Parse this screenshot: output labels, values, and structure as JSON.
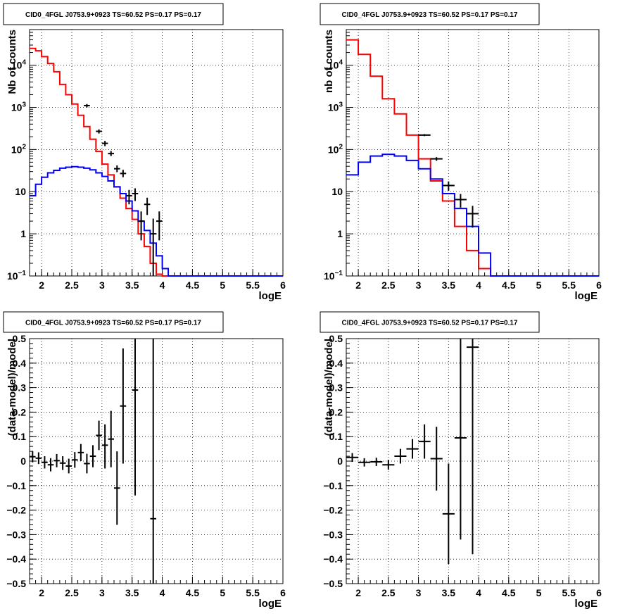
{
  "chart_data": [
    {
      "type": "histogram",
      "id": "top-left",
      "title": "CID0_4FGL J0753.9+0923 TS=60.52 PS=0.17 PS=0.17",
      "xlabel": "logE",
      "ylabel": "Nb of counts",
      "xlim": [
        1.8,
        6.0
      ],
      "ylim": [
        0.1,
        70000
      ],
      "yscale": "log",
      "grid": true,
      "bin_width": 0.1,
      "xticks": [
        "2",
        "2.5",
        "3",
        "3.5",
        "4",
        "4.5",
        "5",
        "5.5",
        "6"
      ],
      "yticks": [
        "10^-1",
        "1",
        "10",
        "10^2",
        "10^3",
        "10^4"
      ],
      "series": [
        {
          "color": "#ff0000",
          "style": "step",
          "bin_edges_start": 1.8,
          "values": [
            25000,
            22000,
            16000,
            11000,
            7000,
            3500,
            2000,
            1200,
            650,
            350,
            175,
            90,
            45,
            25,
            13,
            7,
            4,
            2.2,
            1.0,
            0.5,
            0.2,
            0.11,
            0.1,
            0.1,
            0.1,
            0.1,
            0.1,
            0.1,
            0.1,
            0.1,
            0.1,
            0.1,
            0.1,
            0.1,
            0.1,
            0.1,
            0.1,
            0.1,
            0.1,
            0.1,
            0.1,
            0.1
          ]
        },
        {
          "color": "#0000ff",
          "style": "step",
          "bin_edges_start": 1.8,
          "values": [
            8,
            15,
            22,
            28,
            32,
            36,
            38,
            39,
            38,
            36,
            33,
            28,
            23,
            18,
            13,
            9,
            6,
            3.5,
            2,
            1.2,
            0.6,
            0.3,
            0.15,
            0.1,
            0.1,
            0.1,
            0.1,
            0.1,
            0.1,
            0.1,
            0.1,
            0.1,
            0.1,
            0.1,
            0.1,
            0.1,
            0.1,
            0.1,
            0.1,
            0.1,
            0.1,
            0.1
          ]
        },
        {
          "color": "#000000",
          "style": "errorbar",
          "points": [
            {
              "x": 2.75,
              "y": 1100,
              "lo": 1000,
              "hi": 1200
            },
            {
              "x": 2.95,
              "y": 270,
              "lo": 240,
              "hi": 300
            },
            {
              "x": 3.05,
              "y": 140,
              "lo": 120,
              "hi": 160
            },
            {
              "x": 3.15,
              "y": 80,
              "lo": 70,
              "hi": 92
            },
            {
              "x": 3.25,
              "y": 35,
              "lo": 29,
              "hi": 42
            },
            {
              "x": 3.35,
              "y": 27,
              "lo": 22,
              "hi": 33
            },
            {
              "x": 3.45,
              "y": 8,
              "lo": 5,
              "hi": 11
            },
            {
              "x": 3.55,
              "y": 9,
              "lo": 6,
              "hi": 12
            },
            {
              "x": 3.65,
              "y": 2,
              "lo": 0.7,
              "hi": 3.4
            },
            {
              "x": 3.75,
              "y": 5,
              "lo": 2.8,
              "hi": 7.2
            },
            {
              "x": 3.85,
              "y": 1,
              "lo": 0.1,
              "hi": 2.3
            },
            {
              "x": 3.95,
              "y": 2,
              "lo": 0.7,
              "hi": 3.4
            }
          ]
        }
      ]
    },
    {
      "type": "histogram",
      "id": "top-right",
      "title": "CID0_4FGL J0753.9+0923 TS=60.52 PS=0.17 PS=0.17",
      "xlabel": "logE",
      "ylabel": "nb of counts",
      "xlim": [
        1.8,
        6.0
      ],
      "ylim": [
        0.1,
        70000
      ],
      "yscale": "log",
      "grid": true,
      "bin_width": 0.2,
      "xticks": [
        "2",
        "2.5",
        "3",
        "3.5",
        "4",
        "4.5",
        "5",
        "5.5",
        "6"
      ],
      "yticks": [
        "10^-1",
        "1",
        "10",
        "10^2",
        "10^3",
        "10^4"
      ],
      "series": [
        {
          "color": "#ff0000",
          "style": "step",
          "bin_edges_start": 1.8,
          "values": [
            40000,
            18000,
            5500,
            1600,
            700,
            220,
            60,
            18,
            6,
            1.5,
            0.4,
            0.15,
            0.1,
            0.1,
            0.1,
            0.1,
            0.1,
            0.1,
            0.1,
            0.1,
            0.1
          ]
        },
        {
          "color": "#0000ff",
          "style": "step",
          "bin_edges_start": 1.8,
          "values": [
            25,
            50,
            70,
            77,
            70,
            55,
            35,
            20,
            9,
            4,
            1.5,
            0.35,
            0.1,
            0.1,
            0.1,
            0.1,
            0.1,
            0.1,
            0.1,
            0.1,
            0.1
          ]
        },
        {
          "color": "#000000",
          "style": "errorbar",
          "points": [
            {
              "x": 3.1,
              "y": 220,
              "lo": 208,
              "hi": 232
            },
            {
              "x": 3.3,
              "y": 60,
              "lo": 54,
              "hi": 66
            },
            {
              "x": 3.5,
              "y": 14,
              "lo": 10.5,
              "hi": 17.5
            },
            {
              "x": 3.7,
              "y": 6.5,
              "lo": 4.2,
              "hi": 8.8
            },
            {
              "x": 3.9,
              "y": 3,
              "lo": 1.4,
              "hi": 4.6
            }
          ]
        }
      ]
    },
    {
      "type": "scatter",
      "id": "bottom-left",
      "title": "CID0_4FGL J0753.9+0923 TS=60.52 PS=0.17 PS=0.17",
      "xlabel": "logE",
      "ylabel": "(data-model)/model",
      "xlim": [
        1.8,
        6.0
      ],
      "ylim": [
        -0.5,
        0.5
      ],
      "grid": true,
      "xticks": [
        "2",
        "2.5",
        "3",
        "3.5",
        "4",
        "4.5",
        "5",
        "5.5",
        "6"
      ],
      "yticks": [
        "−0.5",
        "−0.4",
        "−0.3",
        "−0.2",
        "−0.1",
        "0",
        "0.1",
        "0.2",
        "0.3",
        "0.4",
        "0.5"
      ],
      "series": [
        {
          "color": "#000000",
          "style": "errorbar",
          "xerr": 0.05,
          "points": [
            {
              "x": 1.85,
              "y": 0.018,
              "lo": -0.005,
              "hi": 0.041
            },
            {
              "x": 1.95,
              "y": 0.012,
              "lo": -0.012,
              "hi": 0.036
            },
            {
              "x": 2.05,
              "y": -0.005,
              "lo": -0.03,
              "hi": 0.02
            },
            {
              "x": 2.15,
              "y": -0.015,
              "lo": -0.042,
              "hi": 0.012
            },
            {
              "x": 2.25,
              "y": 0.002,
              "lo": -0.025,
              "hi": 0.029
            },
            {
              "x": 2.35,
              "y": -0.008,
              "lo": -0.036,
              "hi": 0.02
            },
            {
              "x": 2.45,
              "y": -0.02,
              "lo": -0.05,
              "hi": 0.01
            },
            {
              "x": 2.55,
              "y": 0.005,
              "lo": -0.027,
              "hi": 0.037
            },
            {
              "x": 2.65,
              "y": 0.035,
              "lo": 0.0,
              "hi": 0.07
            },
            {
              "x": 2.75,
              "y": -0.01,
              "lo": -0.05,
              "hi": 0.03
            },
            {
              "x": 2.85,
              "y": 0.02,
              "lo": -0.025,
              "hi": 0.065
            },
            {
              "x": 2.95,
              "y": 0.105,
              "lo": 0.045,
              "hi": 0.165
            },
            {
              "x": 3.05,
              "y": 0.065,
              "lo": -0.03,
              "hi": 0.15
            },
            {
              "x": 3.15,
              "y": 0.09,
              "lo": -0.025,
              "hi": 0.205
            },
            {
              "x": 3.25,
              "y": -0.11,
              "lo": -0.26,
              "hi": 0.04
            },
            {
              "x": 3.35,
              "y": 0.225,
              "lo": -0.01,
              "hi": 0.46
            },
            {
              "x": 3.55,
              "y": 0.29,
              "lo": -0.14,
              "hi": 0.72
            },
            {
              "x": 3.85,
              "y": -0.235,
              "lo": -0.99,
              "hi": 0.52
            }
          ]
        }
      ]
    },
    {
      "type": "scatter",
      "id": "bottom-right",
      "title": "CID0_4FGL J0753.9+0923 TS=60.52 PS=0.17 PS=0.17",
      "xlabel": "logE",
      "ylabel": "(data-model)/model",
      "xlim": [
        1.8,
        6.0
      ],
      "ylim": [
        -0.5,
        0.5
      ],
      "grid": true,
      "xticks": [
        "2",
        "2.5",
        "3",
        "3.5",
        "4",
        "4.5",
        "5",
        "5.5",
        "6"
      ],
      "yticks": [
        "−0.5",
        "−0.4",
        "−0.3",
        "−0.2",
        "−0.1",
        "0",
        "0.1",
        "0.2",
        "0.3",
        "0.4",
        "0.5"
      ],
      "series": [
        {
          "color": "#000000",
          "style": "errorbar",
          "xerr": 0.1,
          "points": [
            {
              "x": 1.9,
              "y": 0.015,
              "lo": -0.003,
              "hi": 0.033
            },
            {
              "x": 2.1,
              "y": -0.005,
              "lo": -0.022,
              "hi": 0.012
            },
            {
              "x": 2.3,
              "y": -0.003,
              "lo": -0.02,
              "hi": 0.014
            },
            {
              "x": 2.5,
              "y": -0.015,
              "lo": -0.035,
              "hi": 0.005
            },
            {
              "x": 2.7,
              "y": 0.02,
              "lo": -0.01,
              "hi": 0.05
            },
            {
              "x": 2.9,
              "y": 0.05,
              "lo": 0.01,
              "hi": 0.09
            },
            {
              "x": 3.1,
              "y": 0.08,
              "lo": 0.01,
              "hi": 0.15
            },
            {
              "x": 3.3,
              "y": 0.01,
              "lo": -0.12,
              "hi": 0.14
            },
            {
              "x": 3.5,
              "y": -0.215,
              "lo": -0.42,
              "hi": -0.01
            },
            {
              "x": 3.7,
              "y": 0.095,
              "lo": -0.32,
              "hi": 0.51
            },
            {
              "x": 3.9,
              "y": 0.465,
              "lo": -0.38,
              "hi": 1.3
            }
          ]
        }
      ]
    }
  ]
}
